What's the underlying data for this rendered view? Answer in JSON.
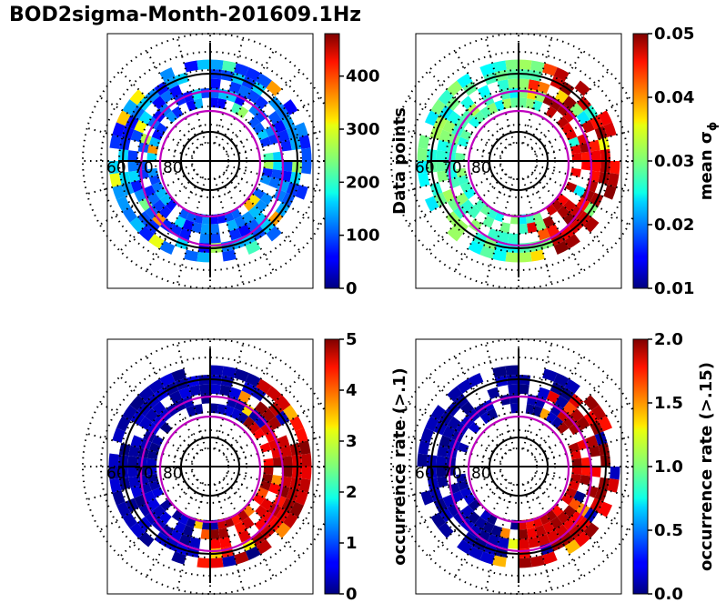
{
  "title": "BOD2sigma-Month-201609.1Hz",
  "colors": {
    "axis": "#000000",
    "contour": "#bf00bf",
    "grid": "#000000"
  },
  "chart_data": [
    {
      "type": "heatmap",
      "projection": "polar",
      "position": "top-left",
      "lat_labels": [
        "60",
        "70",
        "80"
      ],
      "colorbar": {
        "label": "Data points",
        "ticks": [
          "0",
          "100",
          "200",
          "300",
          "400"
        ],
        "tick_values": [
          0,
          100,
          200,
          300,
          400
        ],
        "vmin": 0,
        "vmax": 480,
        "colormap": "jet"
      },
      "dominant_value_fraction": 0.08,
      "cells": [
        {
          "mlt": 0,
          "lat": 62,
          "value": 120
        },
        {
          "mlt": 3,
          "lat": 62,
          "value": 140
        },
        {
          "mlt": 6,
          "lat": 62,
          "value": 150
        },
        {
          "mlt": 9,
          "lat": 62,
          "value": 160
        },
        {
          "mlt": 12,
          "lat": 62,
          "value": 100
        },
        {
          "mlt": 15,
          "lat": 62,
          "value": 160
        },
        {
          "mlt": 18,
          "lat": 62,
          "value": 180
        },
        {
          "mlt": 21,
          "lat": 62,
          "value": 140
        },
        {
          "mlt": 1,
          "lat": 64,
          "value": 300
        },
        {
          "mlt": 5,
          "lat": 64,
          "value": 250
        },
        {
          "mlt": 10,
          "lat": 64,
          "value": 350
        },
        {
          "mlt": 14,
          "lat": 64,
          "value": 220
        },
        {
          "mlt": 19,
          "lat": 64,
          "value": 260
        },
        {
          "mlt": 22,
          "lat": 64,
          "value": 200
        }
      ]
    },
    {
      "type": "heatmap",
      "projection": "polar",
      "position": "top-right",
      "lat_labels": [
        "60",
        "70",
        "80"
      ],
      "colorbar": {
        "label": "mean σ_φ",
        "ticks": [
          "0.01",
          "0.02",
          "0.03",
          "0.04",
          "0.05"
        ],
        "tick_values": [
          0.01,
          0.02,
          0.03,
          0.04,
          0.05
        ],
        "vmin": 0.01,
        "vmax": 0.05,
        "colormap": "jet"
      },
      "dominant_value_fraction": 0.55,
      "cells": [
        {
          "mlt": 0,
          "lat": 62,
          "value": 0.05
        },
        {
          "mlt": 2,
          "lat": 62,
          "value": 0.05
        },
        {
          "mlt": 4,
          "lat": 62,
          "value": 0.05
        },
        {
          "mlt": 6,
          "lat": 62,
          "value": 0.05
        },
        {
          "mlt": 9,
          "lat": 64,
          "value": 0.045
        },
        {
          "mlt": 12,
          "lat": 62,
          "value": 0.03
        },
        {
          "mlt": 15,
          "lat": 62,
          "value": 0.028
        },
        {
          "mlt": 18,
          "lat": 62,
          "value": 0.026
        },
        {
          "mlt": 21,
          "lat": 62,
          "value": 0.03
        },
        {
          "mlt": 23,
          "lat": 64,
          "value": 0.035
        }
      ]
    },
    {
      "type": "heatmap",
      "projection": "polar",
      "position": "bottom-left",
      "lat_labels": [
        "60",
        "70",
        "80"
      ],
      "colorbar": {
        "label": "occurrence rate (>.1)",
        "ticks": [
          "0",
          "1",
          "2",
          "3",
          "4",
          "5"
        ],
        "tick_values": [
          0,
          1,
          2,
          3,
          4,
          5
        ],
        "vmin": 0,
        "vmax": 5,
        "colormap": "jet"
      },
      "dominant_value_fraction": 0.08,
      "cells": [
        {
          "mlt": 2,
          "lat": 62,
          "value": 5
        },
        {
          "mlt": 4,
          "lat": 62,
          "value": 5
        },
        {
          "mlt": 6,
          "lat": 62,
          "value": 5
        },
        {
          "mlt": 8,
          "lat": 64,
          "value": 4.5
        },
        {
          "mlt": 10,
          "lat": 64,
          "value": 3
        },
        {
          "mlt": 14,
          "lat": 62,
          "value": 0.3
        },
        {
          "mlt": 18,
          "lat": 62,
          "value": 0.2
        },
        {
          "mlt": 22,
          "lat": 62,
          "value": 0.5
        }
      ]
    },
    {
      "type": "heatmap",
      "projection": "polar",
      "position": "bottom-right",
      "lat_labels": [
        "60",
        "70",
        "80"
      ],
      "colorbar": {
        "label": "occurrence rate (>.15)",
        "ticks": [
          "0.0",
          "0.5",
          "1.0",
          "1.5",
          "2.0"
        ],
        "tick_values": [
          0.0,
          0.5,
          1.0,
          1.5,
          2.0
        ],
        "vmin": 0.0,
        "vmax": 2.0,
        "colormap": "jet"
      },
      "dominant_value_fraction": 0.05,
      "cells": [
        {
          "mlt": 2,
          "lat": 62,
          "value": 2.0
        },
        {
          "mlt": 4,
          "lat": 62,
          "value": 2.0
        },
        {
          "mlt": 6,
          "lat": 62,
          "value": 2.0
        },
        {
          "mlt": 8,
          "lat": 64,
          "value": 1.8
        },
        {
          "mlt": 10,
          "lat": 64,
          "value": 1.2
        },
        {
          "mlt": 14,
          "lat": 62,
          "value": 0.1
        },
        {
          "mlt": 18,
          "lat": 62,
          "value": 0.1
        },
        {
          "mlt": 22,
          "lat": 62,
          "value": 0.2
        }
      ]
    }
  ]
}
